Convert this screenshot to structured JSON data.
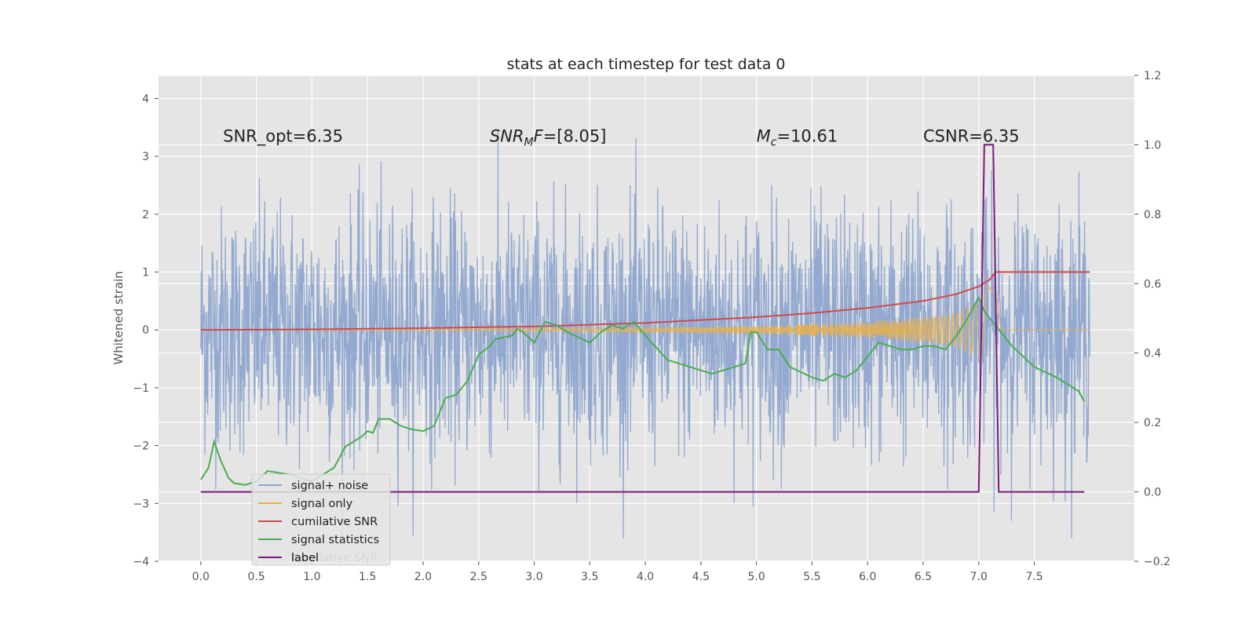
{
  "chart_data": {
    "type": "line",
    "title": "stats at each timestep for test data 0",
    "ylabel": "Whitened strain",
    "ylabel_right": "",
    "xlim": [
      -0.38,
      8.4
    ],
    "ylim": [
      -4.0,
      4.4
    ],
    "ylim_right": [
      -0.2,
      1.2
    ],
    "x_ticks": [
      "0.0",
      "0.5",
      "1.0",
      "1.5",
      "2.0",
      "2.5",
      "3.0",
      "3.5",
      "4.0",
      "4.5",
      "5.0",
      "5.5",
      "6.0",
      "6.5",
      "7.0",
      "7.5"
    ],
    "y_ticks": [
      "4",
      "3",
      "2",
      "1",
      "0",
      "−1",
      "−2",
      "−3",
      "−4"
    ],
    "y_right_ticks": [
      "1.2",
      "1.0",
      "0.8",
      "0.6",
      "0.4",
      "0.2",
      "0.0",
      "−0.2"
    ],
    "grid": true,
    "legend_position": "lower-left",
    "annotations": [
      {
        "text": "SNR_opt=6.35",
        "x": 0.2,
        "y": 3.25
      },
      {
        "text": "SNR_MF=[8.05]",
        "x": 2.6,
        "y": 3.25,
        "main": "SNR",
        "sub": "M",
        "tail": "F=[8.05]"
      },
      {
        "text": "M_c=10.61",
        "x": 5.0,
        "y": 3.25,
        "main": "M",
        "sub": "c",
        "tail": "=10.61"
      },
      {
        "text": "CSNR=6.35",
        "x": 6.5,
        "y": 3.25
      }
    ],
    "series": [
      {
        "name": "signal+ noise",
        "label": "signal+ noise",
        "axis": "left",
        "color": "#8ea5cf",
        "style": "noise",
        "x_range": [
          0.0,
          8.0
        ],
        "approx_range": [
          -3.6,
          4.0
        ]
      },
      {
        "name": "signal only",
        "label": "signal only",
        "axis": "left",
        "color": "#e8b04d",
        "style": "chirp",
        "x": [
          0.0,
          4.0,
          5.0,
          5.5,
          6.0,
          6.5,
          6.8,
          7.0,
          7.1,
          7.15,
          7.2,
          8.0
        ],
        "envelope": [
          0.0,
          0.04,
          0.07,
          0.1,
          0.14,
          0.22,
          0.3,
          0.5,
          0.8,
          1.3,
          0.0,
          0.0
        ]
      },
      {
        "name": "cumilative SNR",
        "label": "cumilative SNR",
        "axis": "left",
        "color": "#d04a4a",
        "x": [
          0.0,
          1.0,
          2.0,
          3.0,
          4.0,
          5.0,
          5.5,
          6.0,
          6.5,
          6.8,
          7.0,
          7.1,
          7.15,
          8.0
        ],
        "values": [
          0.0,
          0.01,
          0.03,
          0.06,
          0.12,
          0.22,
          0.29,
          0.38,
          0.5,
          0.62,
          0.75,
          0.87,
          1.0,
          1.0
        ]
      },
      {
        "name": "signal statistics",
        "label": "signal statistics",
        "axis": "right",
        "color": "#4aac52",
        "x": [
          0.0,
          0.07,
          0.12,
          0.18,
          0.25,
          0.3,
          0.4,
          0.5,
          0.6,
          0.8,
          1.0,
          1.2,
          1.3,
          1.4,
          1.45,
          1.5,
          1.55,
          1.6,
          1.7,
          1.8,
          1.9,
          2.0,
          2.1,
          2.2,
          2.3,
          2.4,
          2.5,
          2.6,
          2.65,
          2.8,
          2.85,
          2.9,
          3.0,
          3.1,
          3.2,
          3.3,
          3.5,
          3.6,
          3.7,
          3.8,
          3.9,
          4.0,
          4.2,
          4.3,
          4.5,
          4.6,
          4.8,
          4.9,
          4.95,
          5.0,
          5.1,
          5.2,
          5.3,
          5.5,
          5.6,
          5.7,
          5.8,
          5.9,
          6.0,
          6.1,
          6.2,
          6.3,
          6.4,
          6.5,
          6.6,
          6.7,
          6.8,
          6.9,
          7.0,
          7.05,
          7.15,
          7.25,
          7.3,
          7.5,
          7.7,
          7.8,
          7.9,
          7.95
        ],
        "values": [
          0.035,
          0.07,
          0.145,
          0.09,
          0.04,
          0.025,
          0.02,
          0.03,
          0.06,
          0.05,
          0.03,
          0.07,
          0.13,
          0.15,
          0.16,
          0.175,
          0.17,
          0.21,
          0.21,
          0.19,
          0.18,
          0.175,
          0.19,
          0.27,
          0.28,
          0.32,
          0.395,
          0.42,
          0.44,
          0.45,
          0.47,
          0.46,
          0.43,
          0.49,
          0.48,
          0.46,
          0.43,
          0.46,
          0.48,
          0.47,
          0.49,
          0.45,
          0.38,
          0.37,
          0.35,
          0.34,
          0.36,
          0.37,
          0.46,
          0.46,
          0.41,
          0.41,
          0.36,
          0.33,
          0.32,
          0.34,
          0.33,
          0.35,
          0.39,
          0.43,
          0.42,
          0.41,
          0.41,
          0.42,
          0.42,
          0.41,
          0.45,
          0.5,
          0.56,
          0.52,
          0.48,
          0.44,
          0.42,
          0.36,
          0.33,
          0.31,
          0.29,
          0.26
        ]
      },
      {
        "name": "label",
        "label": "label",
        "axis": "right",
        "color": "#7a1a7e",
        "x": [
          0.0,
          7.0,
          7.05,
          7.13,
          7.18,
          7.95
        ],
        "values": [
          0.0,
          0.0,
          1.0,
          1.0,
          0.0,
          0.0
        ]
      }
    ],
    "legend_extra_text": "cumilative SNR"
  }
}
